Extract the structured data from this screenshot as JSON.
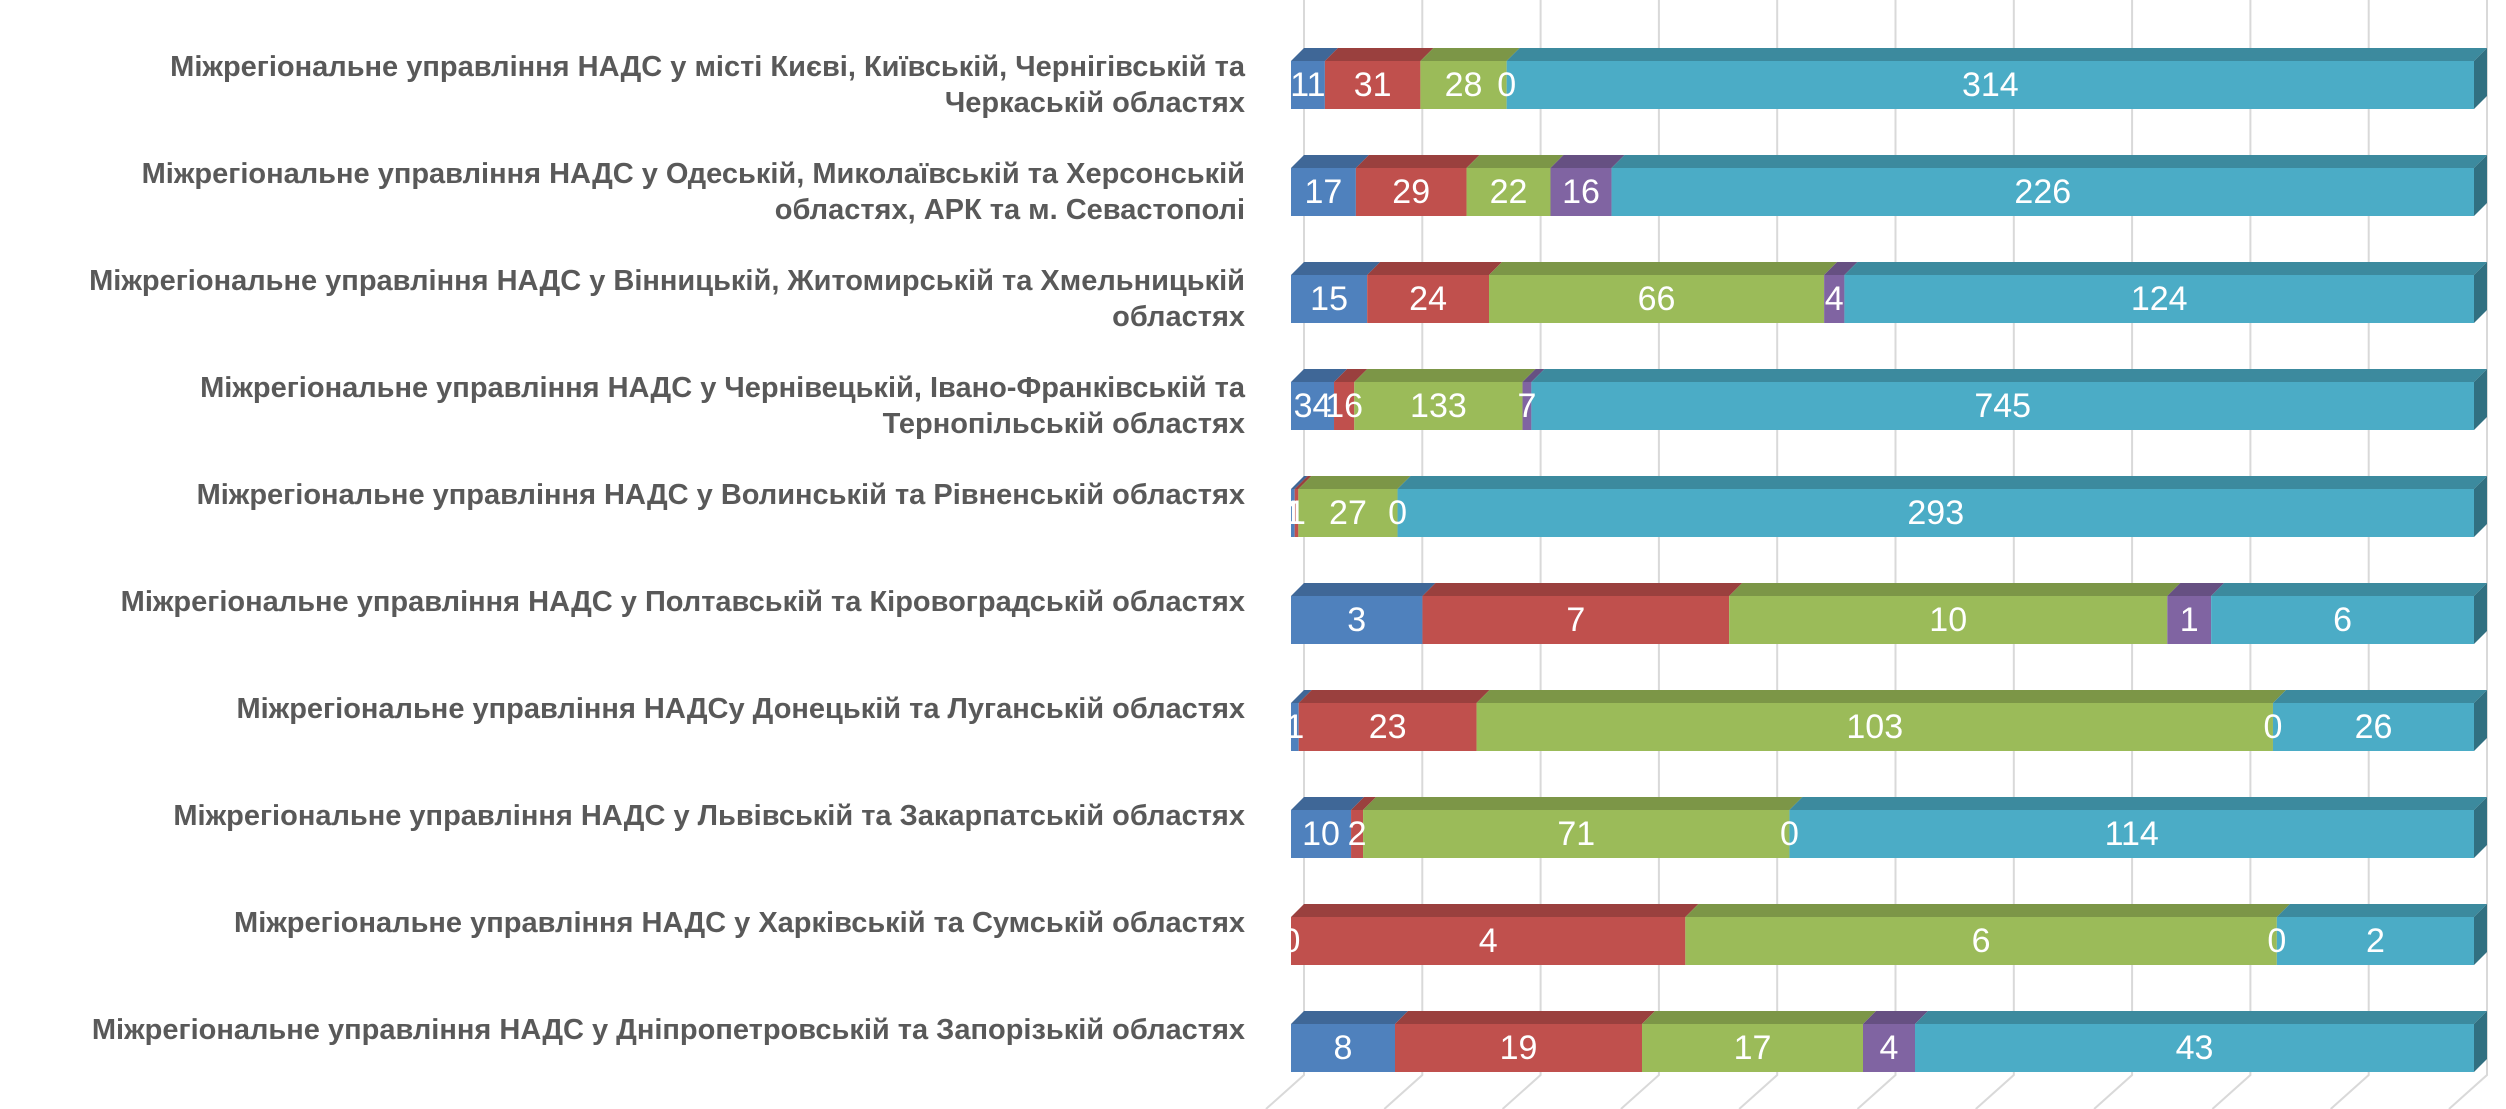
{
  "chart_data": {
    "type": "stacked_bar_100",
    "orientation": "horizontal",
    "categories": [
      "Міжрегіональне управління НАДС у місті Києві, Київській, Чернігівській та Черкаській областях",
      "Міжрегіональне управління НАДС у Одеській, Миколаївській та Херсонській областях, АРК та м. Севастополі",
      "Міжрегіональне управління НАДС у Вінницькій, Житомирській та Хмельницькій областях",
      "Міжрегіональне управління НАДС у Чернівецькій, Івано-Франківській та Тернопільській областях",
      "Міжрегіональне управління НАДС у Волинській та Рівненській областях",
      "Міжрегіональне управління НАДС у Полтавській та Кіровоградській областях",
      "Міжрегіональне управління НАДСу Донецькій та Луганській областях",
      "Міжрегіональне управління НАДС у Львівській та Закарпатській областях",
      "Міжрегіональне управління НАДС у Харківській та Сумській областях",
      "Міжрегіональне управління НАДС у Дніпропетровській та Запорізькій областях"
    ],
    "series": [
      {
        "color": "#4f81bd",
        "values": [
          11,
          17,
          15,
          34,
          1,
          3,
          1,
          10,
          0,
          8
        ]
      },
      {
        "color": "#c0504d",
        "values": [
          31,
          29,
          24,
          16,
          1,
          7,
          23,
          2,
          4,
          19
        ]
      },
      {
        "color": "#9bbb59",
        "values": [
          28,
          22,
          66,
          133,
          27,
          10,
          103,
          71,
          6,
          17
        ]
      },
      {
        "color": "#8064a2",
        "values": [
          0,
          16,
          4,
          7,
          0,
          1,
          0,
          0,
          0,
          4
        ]
      },
      {
        "color": "#4bacc6",
        "values": [
          314,
          226,
          124,
          745,
          293,
          6,
          26,
          114,
          2,
          43
        ]
      }
    ],
    "xlim": [
      0,
      100
    ],
    "xticks": [
      0,
      10,
      20,
      30,
      40,
      50,
      60,
      70,
      80,
      90,
      100
    ],
    "grid": true
  }
}
